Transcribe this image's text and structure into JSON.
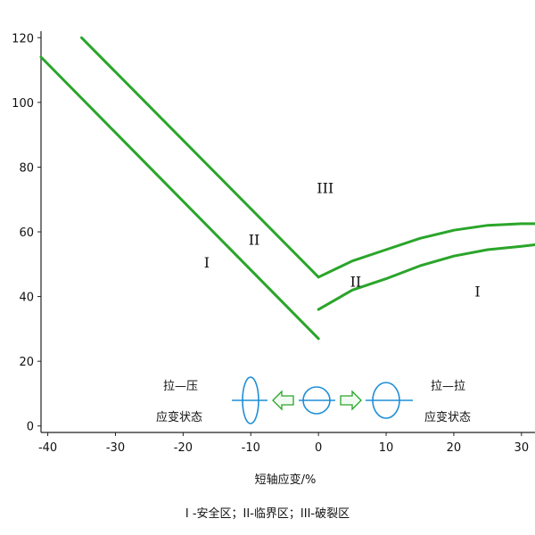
{
  "chart_data": {
    "type": "line",
    "title": "",
    "xlabel": "短轴应变/%",
    "ylabel": "",
    "xlim": [
      -41,
      32
    ],
    "ylim": [
      -2,
      122
    ],
    "x_ticks": [
      -40,
      -30,
      -20,
      -10,
      0,
      10,
      20,
      30
    ],
    "y_ticks": [
      0,
      20,
      40,
      60,
      80,
      100,
      120
    ],
    "grid": false,
    "legend": "none",
    "line_color": "#2aa52a",
    "series": [
      {
        "x": [
          -41,
          0
        ],
        "y": [
          114,
          27
        ]
      },
      {
        "x": [
          -35,
          0
        ],
        "y": [
          120,
          46
        ]
      },
      {
        "x": [
          0,
          5,
          10,
          15,
          20,
          25,
          30,
          32
        ],
        "y": [
          36,
          42,
          45.5,
          49.5,
          52.5,
          54.5,
          55.5,
          56
        ]
      },
      {
        "x": [
          0,
          5,
          10,
          15,
          20,
          25,
          30,
          32
        ],
        "y": [
          46,
          51,
          54.5,
          58,
          60.5,
          62,
          62.5,
          62.5
        ]
      }
    ],
    "annotations": [
      {
        "text": "I",
        "x": -16.5,
        "y": 49
      },
      {
        "text": "II",
        "x": -9.5,
        "y": 56
      },
      {
        "text": "III",
        "x": 1,
        "y": 72
      },
      {
        "text": "II",
        "x": 5.5,
        "y": 43
      },
      {
        "text": "I",
        "x": 23.5,
        "y": 40
      }
    ],
    "inset": {
      "left_label_line1": "拉—压",
      "left_label_line2": "应变状态",
      "right_label_line1": "拉—拉",
      "right_label_line2": "应变状态",
      "inset_color": "#1f8fd6",
      "arrow_color": "#2aa52a"
    }
  },
  "caption": "I -安全区；II-临界区；III-破裂区"
}
